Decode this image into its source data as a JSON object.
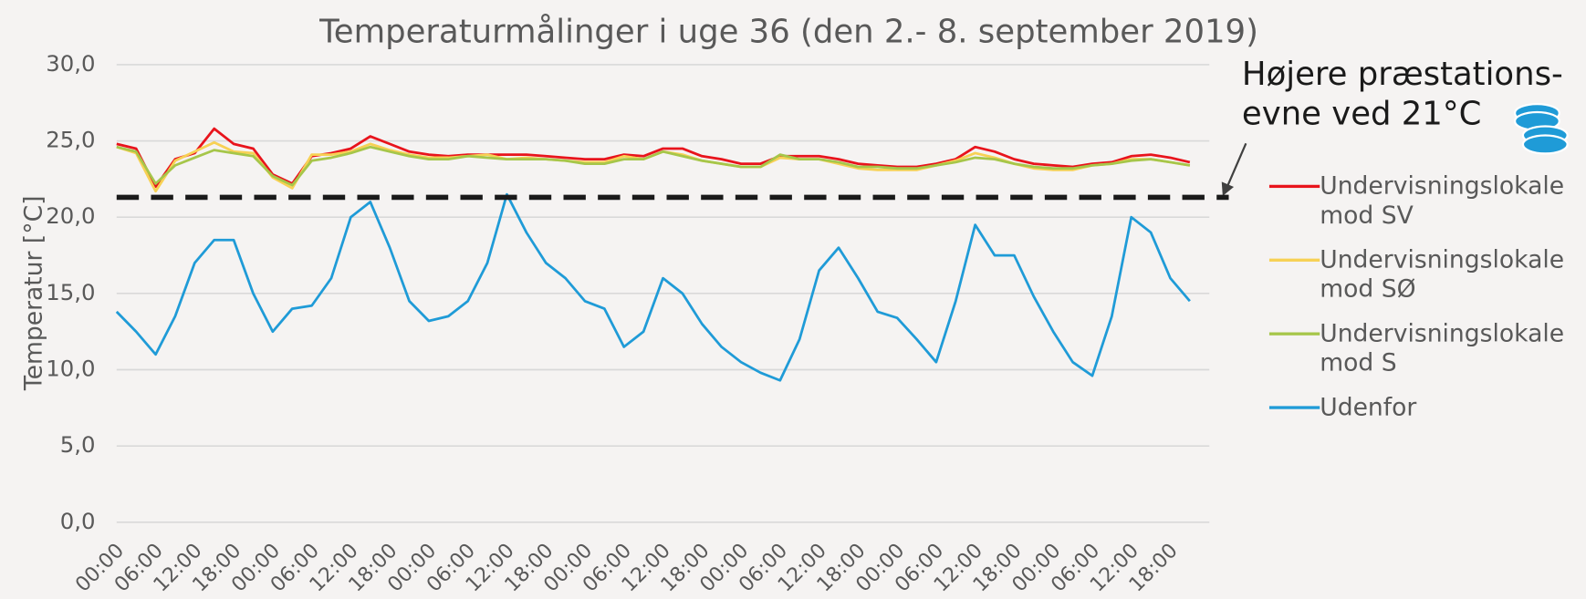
{
  "chart_data": {
    "type": "line",
    "title": "Temperaturmålinger i uge 36 (den 2.- 8. september 2019)",
    "y_label": "Temperatur [°C]",
    "annotation": [
      "Højere præstations-",
      "evne ved 21°C"
    ],
    "reference_line": {
      "value": 21.3,
      "color": "#1a1a1a"
    },
    "categories": [
      "00:00",
      null,
      "06:00",
      null,
      "12:00",
      null,
      "18:00",
      null,
      "00:00",
      null,
      "06:00",
      null,
      "12:00",
      null,
      "18:00",
      null,
      "00:00",
      null,
      "06:00",
      null,
      "12:00",
      null,
      "18:00",
      null,
      "00:00",
      null,
      "06:00",
      null,
      "12:00",
      null,
      "18:00",
      null,
      "00:00",
      null,
      "06:00",
      null,
      "12:00",
      null,
      "18:00",
      null,
      "00:00",
      null,
      "06:00",
      null,
      "12:00",
      null,
      "18:00",
      null,
      "00:00",
      null,
      "06:00",
      null,
      "12:00",
      null,
      "18:00",
      null
    ],
    "series": [
      {
        "name": "Undervisningslokale mod SV",
        "color": "#e8141c",
        "values": [
          24.8,
          24.5,
          22.0,
          23.8,
          24.2,
          25.8,
          24.8,
          24.5,
          22.8,
          22.2,
          24.0,
          24.2,
          24.5,
          25.3,
          24.8,
          24.3,
          24.1,
          24.0,
          24.1,
          24.1,
          24.1,
          24.1,
          24.0,
          23.9,
          23.8,
          23.8,
          24.1,
          24.0,
          24.5,
          24.5,
          24.0,
          23.8,
          23.5,
          23.5,
          24.0,
          24.0,
          24.0,
          23.8,
          23.5,
          23.4,
          23.3,
          23.3,
          23.5,
          23.8,
          24.6,
          24.3,
          23.8,
          23.5,
          23.4,
          23.3,
          23.5,
          23.6,
          24.0,
          24.1,
          23.9,
          23.6
        ]
      },
      {
        "name": "Undervisningslokale mod SØ",
        "color": "#f7d154",
        "values": [
          24.6,
          24.2,
          21.7,
          23.7,
          24.3,
          24.9,
          24.3,
          24.2,
          22.6,
          21.9,
          24.1,
          24.1,
          24.3,
          24.8,
          24.4,
          24.1,
          23.9,
          23.9,
          24.0,
          24.1,
          23.8,
          23.9,
          23.8,
          23.7,
          23.6,
          23.6,
          24.0,
          23.8,
          24.3,
          24.1,
          23.7,
          23.5,
          23.3,
          23.3,
          23.9,
          23.8,
          23.8,
          23.5,
          23.2,
          23.1,
          23.1,
          23.1,
          23.4,
          23.7,
          24.2,
          23.9,
          23.5,
          23.2,
          23.1,
          23.1,
          23.4,
          23.5,
          23.8,
          23.8,
          23.6,
          23.4
        ]
      },
      {
        "name": "Undervisningslokale mod S",
        "color": "#a6c64a",
        "values": [
          24.6,
          24.3,
          22.2,
          23.4,
          23.9,
          24.4,
          24.2,
          24.0,
          22.7,
          22.1,
          23.7,
          23.9,
          24.2,
          24.6,
          24.3,
          24.0,
          23.8,
          23.8,
          24.0,
          23.9,
          23.8,
          23.8,
          23.8,
          23.7,
          23.5,
          23.5,
          23.8,
          23.8,
          24.3,
          24.0,
          23.7,
          23.5,
          23.3,
          23.3,
          24.1,
          23.8,
          23.8,
          23.6,
          23.3,
          23.3,
          23.2,
          23.2,
          23.4,
          23.6,
          23.9,
          23.8,
          23.5,
          23.3,
          23.2,
          23.2,
          23.4,
          23.5,
          23.7,
          23.8,
          23.6,
          23.4
        ]
      },
      {
        "name": "Udenfor",
        "color": "#1f9bd7",
        "values": [
          13.8,
          12.5,
          11.0,
          13.5,
          17.0,
          18.5,
          18.5,
          15.0,
          12.5,
          14.0,
          14.2,
          16.0,
          20.0,
          21.0,
          18.0,
          14.5,
          13.2,
          13.5,
          14.5,
          17.0,
          21.5,
          19.0,
          17.0,
          16.0,
          14.5,
          14.0,
          11.5,
          12.5,
          16.0,
          15.0,
          13.0,
          11.5,
          10.5,
          9.8,
          9.3,
          12.0,
          16.5,
          18.0,
          16.0,
          13.8,
          13.4,
          12.0,
          10.5,
          14.5,
          19.5,
          17.5,
          17.5,
          14.8,
          12.5,
          10.5,
          9.6,
          13.5,
          20.0,
          19.0,
          16.0,
          14.5
        ]
      }
    ],
    "ylim": [
      0,
      30
    ],
    "yticks": [
      {
        "value": 0,
        "label": "0,0"
      },
      {
        "value": 5,
        "label": "5,0"
      },
      {
        "value": 10,
        "label": "10,0"
      },
      {
        "value": 15,
        "label": "15,0"
      },
      {
        "value": 20,
        "label": "20,0"
      },
      {
        "value": 25,
        "label": "25,0"
      },
      {
        "value": 30,
        "label": "30,0"
      }
    ],
    "grid": true,
    "legend": "right"
  }
}
